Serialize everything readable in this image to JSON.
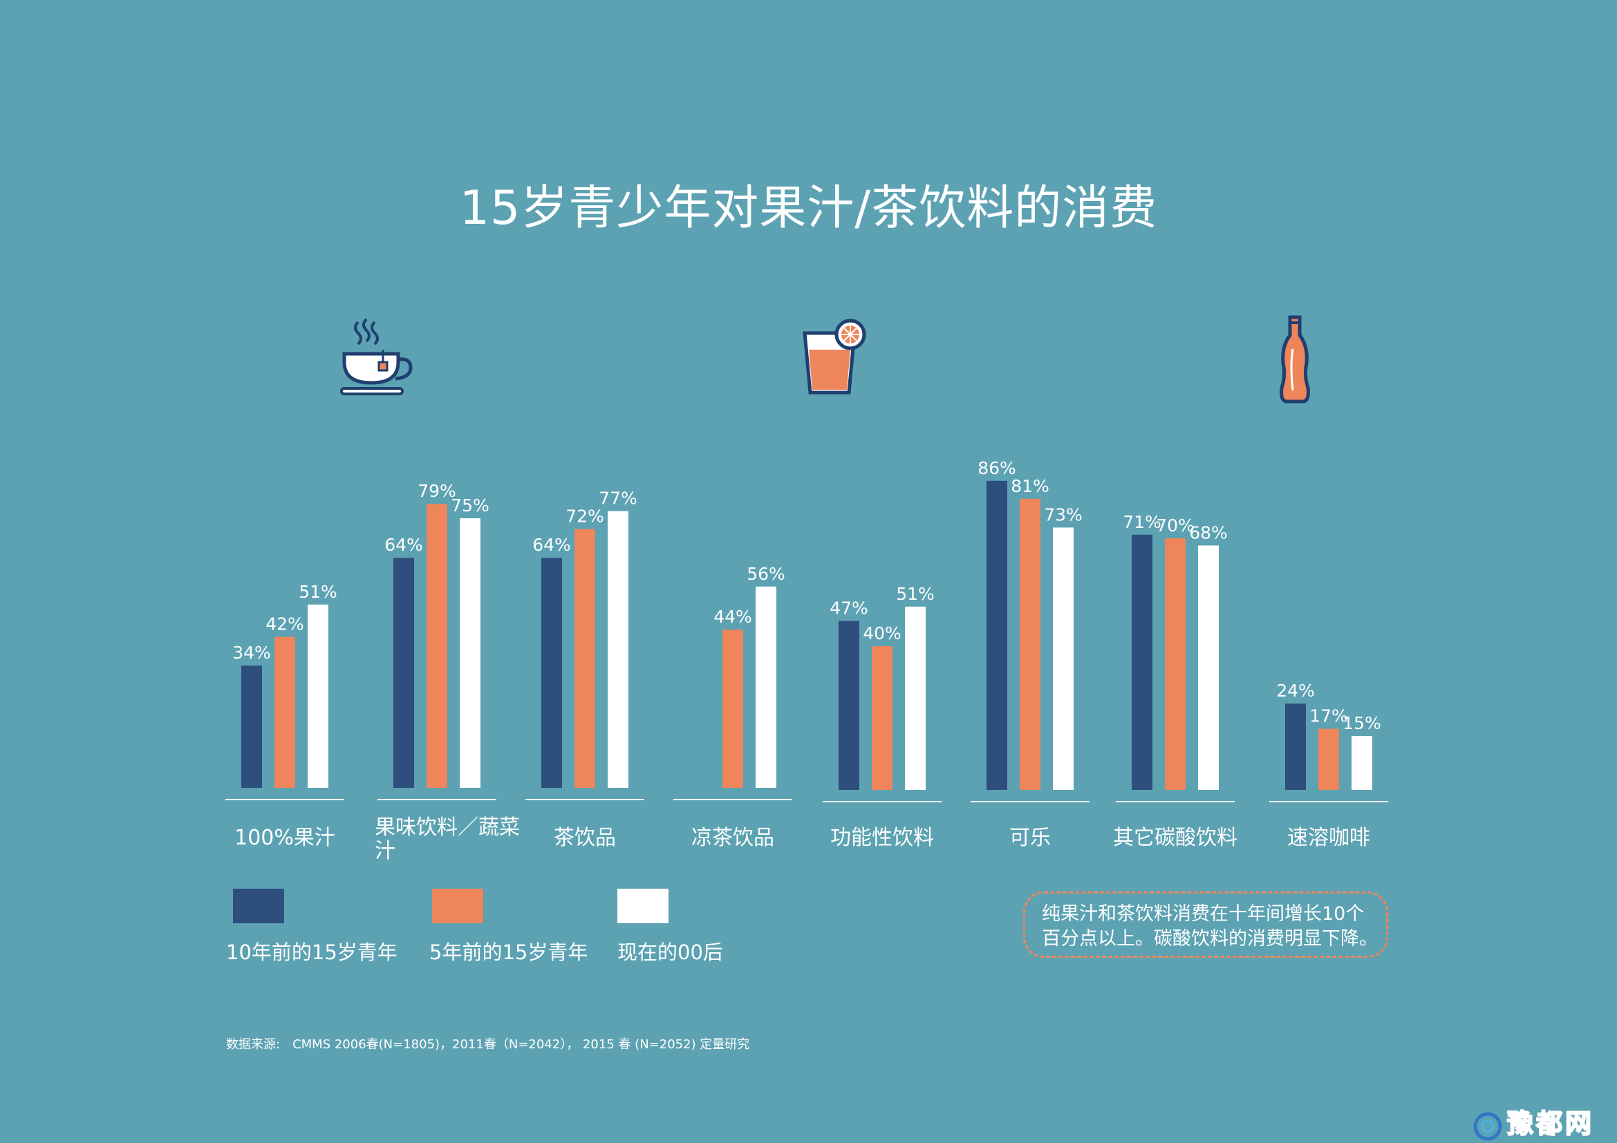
{
  "title": "15岁青少年对果汁/茶饮料的消费",
  "colors": {
    "background": "#5ca2b2",
    "series_10y": "#2e4e7d",
    "series_5y": "#ef855a",
    "series_now": "#ffffff",
    "note_border": "#ef855a"
  },
  "icons": [
    "tea-cup-icon",
    "juice-glass-icon",
    "soda-bottle-icon"
  ],
  "chart_data": {
    "type": "bar",
    "title": "15岁青少年对果汁/茶饮料的消费",
    "categories": [
      "100%果汁",
      "果味饮料／蔬菜汁",
      "茶饮品",
      "凉茶饮品",
      "功能性饮料",
      "可乐",
      "其它碳酸饮料",
      "速溶咖啡"
    ],
    "series": [
      {
        "name": "10年前的15岁青年",
        "values": [
          34,
          64,
          64,
          null,
          47,
          86,
          71,
          24
        ]
      },
      {
        "name": "5年前的15岁青年",
        "values": [
          42,
          79,
          72,
          44,
          40,
          81,
          70,
          17
        ]
      },
      {
        "name": "现在的00后",
        "values": [
          51,
          75,
          77,
          56,
          51,
          73,
          68,
          15
        ]
      }
    ],
    "value_labels": [
      [
        "34%",
        "64%",
        "64%",
        "",
        "47%",
        "86%",
        "71%",
        "24%"
      ],
      [
        "42%",
        "79%",
        "72%",
        "44%",
        "40%",
        "81%",
        "70%",
        "17%"
      ],
      [
        "51%",
        "75%",
        "77%",
        "56%",
        "51%",
        "73%",
        "68%",
        "15%"
      ]
    ],
    "unit": "%",
    "ylim": [
      0,
      100
    ],
    "grid": false,
    "legend_position": "bottom-left"
  },
  "legend": {
    "items": [
      {
        "label": "10年前的15岁青年"
      },
      {
        "label": "5年前的15岁青年"
      },
      {
        "label": "现在的00后"
      }
    ]
  },
  "note": {
    "text_line1": "纯果汁和茶饮料消费在十年间增长10个",
    "text_line2": "百分点以上。碳酸饮料的消费明显下降。"
  },
  "source": "数据来源:　CMMS 2006春(N=1805)，2011春（N=2042），  2015 春 (N=2052)  定量研究",
  "watermark": "豫都网"
}
